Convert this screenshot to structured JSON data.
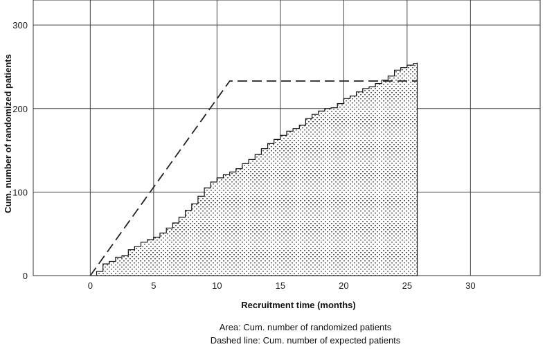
{
  "chart_data": {
    "type": "area",
    "xlabel": "Recruitment time (months)",
    "ylabel": "Cum. number of randomized patients",
    "xlim": [
      -4.5,
      35.5
    ],
    "ylim": [
      0,
      330
    ],
    "x_ticks": [
      0,
      5,
      10,
      15,
      20,
      25,
      30
    ],
    "y_ticks": [
      0,
      100,
      200,
      300
    ],
    "grid": true,
    "captions": [
      "Area: Cum. number of randomized patients",
      "Dashed line: Cum. number of expected patients"
    ],
    "series": [
      {
        "style": "area",
        "x": [
          0,
          0.5,
          1,
          1.5,
          2,
          2.5,
          3,
          3.5,
          4,
          4.5,
          5,
          5.5,
          6,
          6.5,
          7,
          7.5,
          8,
          8.5,
          9,
          9.5,
          10,
          10.5,
          11,
          11.5,
          12,
          12.5,
          13,
          13.5,
          14,
          14.5,
          15,
          15.5,
          16,
          16.5,
          17,
          17.5,
          18,
          18.5,
          19,
          19.5,
          20,
          20.5,
          21,
          21.5,
          22,
          22.5,
          23,
          23.5,
          24,
          24.5,
          25,
          25.5,
          25.8
        ],
        "y": [
          0,
          5,
          14,
          17,
          22,
          24,
          31,
          35,
          40,
          43,
          46,
          51,
          57,
          63,
          70,
          78,
          86,
          95,
          105,
          112,
          117,
          121,
          124,
          128,
          134,
          139,
          145,
          152,
          158,
          163,
          168,
          173,
          176,
          180,
          188,
          193,
          197,
          200,
          201,
          206,
          212,
          215,
          220,
          224,
          226,
          230,
          234,
          239,
          246,
          249,
          252,
          254,
          255
        ]
      },
      {
        "style": "dashed-line",
        "x": [
          0,
          11,
          25.8
        ],
        "y": [
          0,
          233,
          233
        ]
      }
    ]
  }
}
